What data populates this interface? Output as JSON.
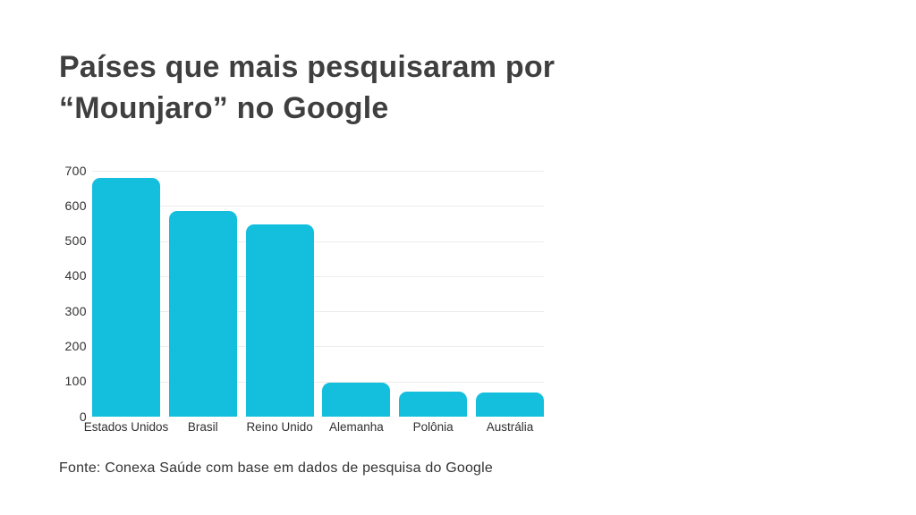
{
  "title": {
    "line1": "Países que mais pesquisaram por",
    "line2": "“Mounjaro” no Google"
  },
  "chart_data": {
    "type": "bar",
    "title": "Países que mais pesquisaram por “Mounjaro” no Google",
    "categories": [
      "Estados Unidos",
      "Brasil",
      "Reino Unido",
      "Alemanha",
      "Polônia",
      "Austrália"
    ],
    "values": [
      680,
      585,
      548,
      98,
      72,
      70
    ],
    "xlabel": "",
    "ylabel": "",
    "ylim": [
      0,
      700
    ],
    "yticks": [
      0,
      100,
      200,
      300,
      400,
      500,
      600,
      700
    ],
    "grid": true,
    "legend": "none",
    "bar_color": "#14bedd"
  },
  "footer": {
    "source": "Fonte: Conexa Saúde com base em dados de pesquisa do Google"
  },
  "colors": {
    "background": "#ffffff",
    "bar": "#14bedd",
    "title_text": "#3f3f3f",
    "axis_text": "#303030",
    "gridline": "#ececec"
  }
}
